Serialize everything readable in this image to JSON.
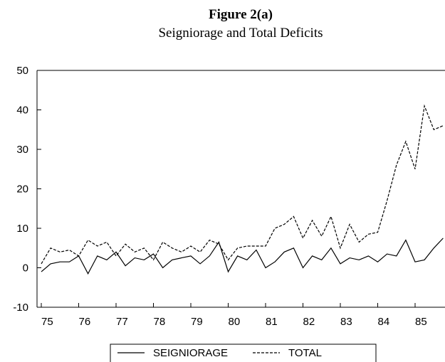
{
  "chart_data": {
    "type": "line",
    "title": "Figure 2(a)",
    "subtitle": "Seigniorage and Total Deficits",
    "x": [
      1975,
      1975.25,
      1975.5,
      1975.75,
      1976,
      1976.25,
      1976.5,
      1976.75,
      1977,
      1977.25,
      1977.5,
      1977.75,
      1978,
      1978.25,
      1978.5,
      1978.75,
      1979,
      1979.25,
      1979.5,
      1979.75,
      1980,
      1980.25,
      1980.5,
      1980.75,
      1981,
      1981.25,
      1981.5,
      1981.75,
      1982,
      1982.25,
      1982.5,
      1982.75,
      1983,
      1983.25,
      1983.5,
      1983.75,
      1984,
      1984.25,
      1984.5,
      1984.75,
      1985,
      1985.25,
      1985.5,
      1985.75
    ],
    "series": [
      {
        "name": "SEIGNIORAGE",
        "color": "#000000",
        "dash": false,
        "values": [
          -1,
          1,
          1.5,
          1.5,
          3,
          -1.5,
          3,
          2,
          4,
          0.5,
          2.5,
          2,
          3.5,
          0,
          2,
          2.5,
          3,
          1,
          3,
          6.5,
          -1,
          3,
          2,
          4.5,
          0,
          1.5,
          4,
          5,
          0,
          3,
          2,
          5,
          1,
          2.5,
          2,
          3,
          1.5,
          3.5,
          3,
          7,
          1.5,
          2,
          5,
          7.5
        ]
      },
      {
        "name": "TOTAL",
        "color": "#000000",
        "dash": true,
        "values": [
          1,
          5,
          4,
          4.5,
          3,
          7,
          5.5,
          6.5,
          3,
          6,
          4,
          5,
          2,
          6.5,
          5,
          4,
          5.5,
          4,
          7,
          6,
          2,
          5,
          5.5,
          5.5,
          5.5,
          10,
          11,
          13,
          7.5,
          12,
          8,
          13,
          5,
          11,
          6.5,
          8.5,
          9,
          17,
          26,
          32,
          25,
          41,
          35,
          36
        ]
      }
    ],
    "xlim": [
      1975,
      1985.8
    ],
    "xticks": [
      {
        "value": 1975,
        "label": "75"
      },
      {
        "value": 1976,
        "label": "76"
      },
      {
        "value": 1977,
        "label": "77"
      },
      {
        "value": 1978,
        "label": "78"
      },
      {
        "value": 1979,
        "label": "79"
      },
      {
        "value": 1980,
        "label": "80"
      },
      {
        "value": 1981,
        "label": "81"
      },
      {
        "value": 1982,
        "label": "82"
      },
      {
        "value": 1983,
        "label": "83"
      },
      {
        "value": 1984,
        "label": "84"
      },
      {
        "value": 1985,
        "label": "85"
      }
    ],
    "ylim": [
      -10,
      50
    ],
    "yticks": [
      -10,
      0,
      10,
      20,
      30,
      40,
      50
    ],
    "grid": false
  }
}
